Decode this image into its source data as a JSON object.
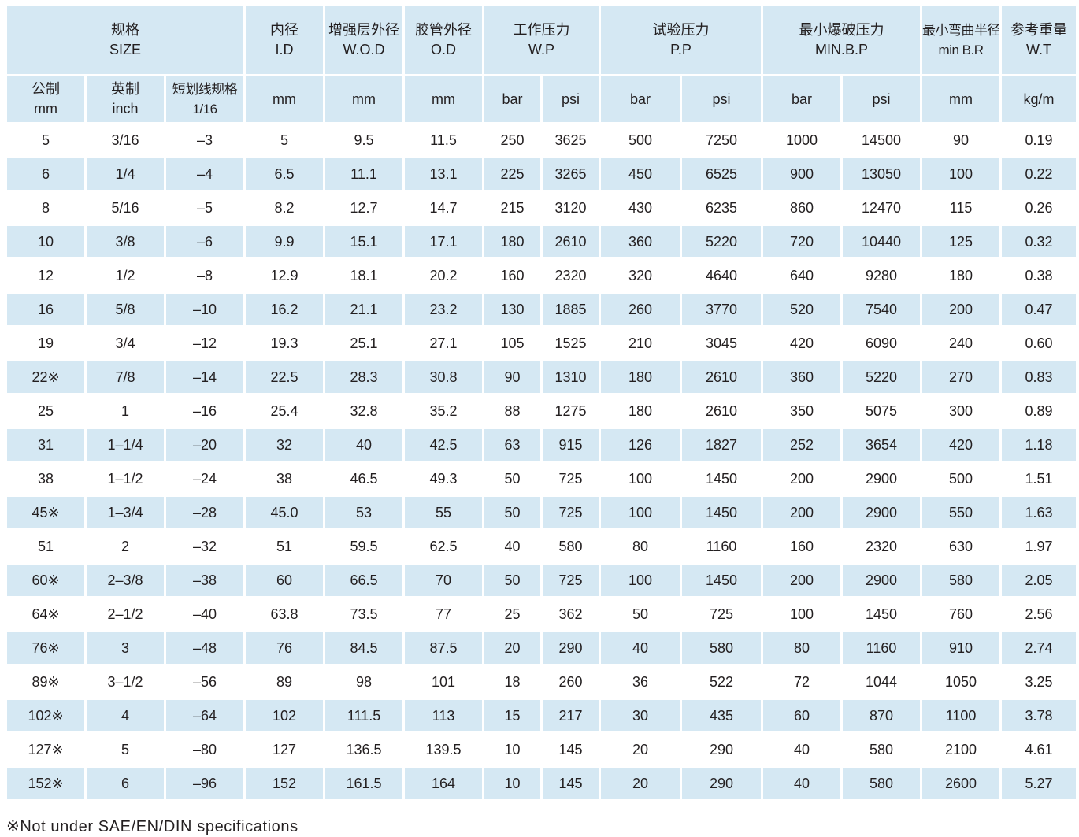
{
  "header": {
    "size": {
      "zh": "规格",
      "en": "SIZE"
    },
    "id": {
      "zh": "内径",
      "en": "I.D"
    },
    "wod": {
      "zh": "增强层外径",
      "en": "W.O.D"
    },
    "od": {
      "zh": "胶管外径",
      "en": "O.D"
    },
    "wp": {
      "zh": "工作压力",
      "en": "W.P"
    },
    "pp": {
      "zh": "试验压力",
      "en": "P.P"
    },
    "bp": {
      "zh": "最小爆破压力",
      "en": "MIN.B.P"
    },
    "br": {
      "zh": "最小弯曲半径",
      "en": "min B.R"
    },
    "wt": {
      "zh": "参考重量",
      "en": "W.T"
    }
  },
  "subheader": {
    "metric": {
      "zh": "公制",
      "en": "mm"
    },
    "inch": {
      "zh": "英制",
      "en": "inch"
    },
    "dash": {
      "zh": "短划线规格",
      "en": "1/16"
    },
    "units": [
      "mm",
      "mm",
      "mm",
      "bar",
      "psi",
      "bar",
      "psi",
      "bar",
      "psi",
      "mm",
      "kg/m"
    ]
  },
  "rows": [
    [
      "5",
      "3/16",
      "–3",
      "5",
      "9.5",
      "11.5",
      "250",
      "3625",
      "500",
      "7250",
      "1000",
      "14500",
      "90",
      "0.19"
    ],
    [
      "6",
      "1/4",
      "–4",
      "6.5",
      "11.1",
      "13.1",
      "225",
      "3265",
      "450",
      "6525",
      "900",
      "13050",
      "100",
      "0.22"
    ],
    [
      "8",
      "5/16",
      "–5",
      "8.2",
      "12.7",
      "14.7",
      "215",
      "3120",
      "430",
      "6235",
      "860",
      "12470",
      "115",
      "0.26"
    ],
    [
      "10",
      "3/8",
      "–6",
      "9.9",
      "15.1",
      "17.1",
      "180",
      "2610",
      "360",
      "5220",
      "720",
      "10440",
      "125",
      "0.32"
    ],
    [
      "12",
      "1/2",
      "–8",
      "12.9",
      "18.1",
      "20.2",
      "160",
      "2320",
      "320",
      "4640",
      "640",
      "9280",
      "180",
      "0.38"
    ],
    [
      "16",
      "5/8",
      "–10",
      "16.2",
      "21.1",
      "23.2",
      "130",
      "1885",
      "260",
      "3770",
      "520",
      "7540",
      "200",
      "0.47"
    ],
    [
      "19",
      "3/4",
      "–12",
      "19.3",
      "25.1",
      "27.1",
      "105",
      "1525",
      "210",
      "3045",
      "420",
      "6090",
      "240",
      "0.60"
    ],
    [
      "22※",
      "7/8",
      "–14",
      "22.5",
      "28.3",
      "30.8",
      "90",
      "1310",
      "180",
      "2610",
      "360",
      "5220",
      "270",
      "0.83"
    ],
    [
      "25",
      "1",
      "–16",
      "25.4",
      "32.8",
      "35.2",
      "88",
      "1275",
      "180",
      "2610",
      "350",
      "5075",
      "300",
      "0.89"
    ],
    [
      "31",
      "1–1/4",
      "–20",
      "32",
      "40",
      "42.5",
      "63",
      "915",
      "126",
      "1827",
      "252",
      "3654",
      "420",
      "1.18"
    ],
    [
      "38",
      "1–1/2",
      "–24",
      "38",
      "46.5",
      "49.3",
      "50",
      "725",
      "100",
      "1450",
      "200",
      "2900",
      "500",
      "1.51"
    ],
    [
      "45※",
      "1–3/4",
      "–28",
      "45.0",
      "53",
      "55",
      "50",
      "725",
      "100",
      "1450",
      "200",
      "2900",
      "550",
      "1.63"
    ],
    [
      "51",
      "2",
      "–32",
      "51",
      "59.5",
      "62.5",
      "40",
      "580",
      "80",
      "1160",
      "160",
      "2320",
      "630",
      "1.97"
    ],
    [
      "60※",
      "2–3/8",
      "–38",
      "60",
      "66.5",
      "70",
      "50",
      "725",
      "100",
      "1450",
      "200",
      "2900",
      "580",
      "2.05"
    ],
    [
      "64※",
      "2–1/2",
      "–40",
      "63.8",
      "73.5",
      "77",
      "25",
      "362",
      "50",
      "725",
      "100",
      "1450",
      "760",
      "2.56"
    ],
    [
      "76※",
      "3",
      "–48",
      "76",
      "84.5",
      "87.5",
      "20",
      "290",
      "40",
      "580",
      "80",
      "1160",
      "910",
      "2.74"
    ],
    [
      "89※",
      "3–1/2",
      "–56",
      "89",
      "98",
      "101",
      "18",
      "260",
      "36",
      "522",
      "72",
      "1044",
      "1050",
      "3.25"
    ],
    [
      "102※",
      "4",
      "–64",
      "102",
      "111.5",
      "113",
      "15",
      "217",
      "30",
      "435",
      "60",
      "870",
      "1100",
      "3.78"
    ],
    [
      "127※",
      "5",
      "–80",
      "127",
      "136.5",
      "139.5",
      "10",
      "145",
      "20",
      "290",
      "40",
      "580",
      "2100",
      "4.61"
    ],
    [
      "152※",
      "6",
      "–96",
      "152",
      "161.5",
      "164",
      "10",
      "145",
      "20",
      "290",
      "40",
      "580",
      "2600",
      "5.27"
    ]
  ],
  "footnote": "※Not under SAE/EN/DIN specifications",
  "colors": {
    "header_bg": "#d5e8f3",
    "stripe_bg": "#d5e8f3",
    "text": "#231f20"
  }
}
